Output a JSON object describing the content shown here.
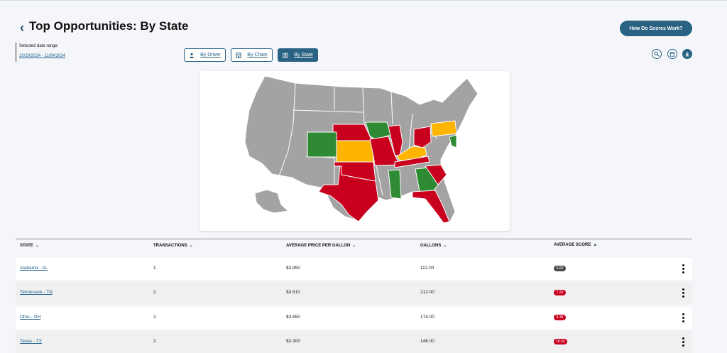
{
  "header": {
    "back_icon": "chevron-left-icon",
    "title": "Top Opportunities: By State",
    "how_button": "How Do Scores Work?"
  },
  "date_range": {
    "label": "Selected date range:",
    "value": "10/29/2024 - 11/04/2024"
  },
  "view_tabs": [
    {
      "label": "By Driver",
      "icon": "person-icon",
      "active": false
    },
    {
      "label": "By Chain",
      "icon": "store-icon",
      "active": false
    },
    {
      "label": "By State",
      "icon": "map-icon",
      "active": true
    }
  ],
  "toolbar_icons": [
    "search-icon",
    "calendar-icon",
    "download-icon"
  ],
  "colors": {
    "accent": "#2a6283",
    "red": "#c8001e",
    "green": "#2e8b34",
    "yellow": "#ffb400",
    "gray": "#a3a3a3"
  },
  "table": {
    "columns": [
      {
        "label": "STATE",
        "sort": "chevron-down-icon"
      },
      {
        "label": "TRANSACTIONS",
        "sort": "chevron-down-icon"
      },
      {
        "label": "AVERAGE PRICE PER GALLON",
        "sort": "chevron-down-icon"
      },
      {
        "label": "GALLONS",
        "sort": "chevron-down-icon"
      },
      {
        "label": "AVERAGE SCORE",
        "sort": "sort-asc-icon"
      }
    ],
    "rows": [
      {
        "state": "Alabama - AL",
        "transactions": "1",
        "price": "$3.950",
        "gallons": "112.00",
        "score": "0.00",
        "score_color": "#4a4a4a"
      },
      {
        "state": "Tennessee - TN",
        "transactions": "2",
        "price": "$3.510",
        "gallons": "212.00",
        "score": "7.29",
        "score_color": "#c8001e"
      },
      {
        "state": "Ohio - OH",
        "transactions": "2",
        "price": "$3.650",
        "gallons": "174.00",
        "score": "8.38",
        "score_color": "#c8001e"
      },
      {
        "state": "Texas - TX",
        "transactions": "2",
        "price": "$3.300",
        "gallons": "146.00",
        "score": "18.60",
        "score_color": "#c8001e"
      }
    ]
  }
}
